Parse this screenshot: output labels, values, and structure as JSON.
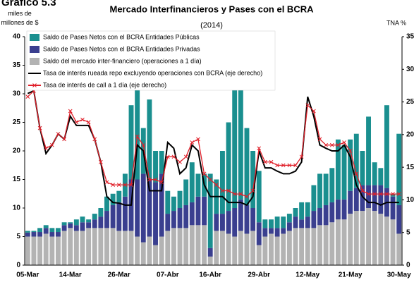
{
  "chart_data": {
    "type": "bar",
    "label": "Gráfico 5.3",
    "title": "Mercado Interfinancieros y Pases con el BCRA",
    "subtitle": "(2014)",
    "y_label": "miles de millones de $",
    "y2_label": "TNA %",
    "categories": [
      "05-Mar",
      null,
      null,
      null,
      null,
      null,
      null,
      "14-Mar",
      null,
      null,
      null,
      null,
      null,
      null,
      null,
      "26-Mar",
      null,
      null,
      null,
      null,
      null,
      null,
      null,
      "07-Abr",
      null,
      null,
      null,
      null,
      null,
      null,
      "16-Abr",
      null,
      null,
      null,
      null,
      null,
      null,
      null,
      "29-Abr",
      null,
      null,
      null,
      null,
      null,
      null,
      null,
      "12-May",
      null,
      null,
      null,
      null,
      null,
      null,
      "21-May",
      null,
      null,
      null,
      null,
      null,
      null,
      null,
      "30-May"
    ],
    "ylim": [
      0,
      40
    ],
    "yticks": [
      0,
      5,
      10,
      15,
      20,
      25,
      30,
      35,
      40
    ],
    "y2lim": [
      0,
      35
    ],
    "y2ticks": [
      0,
      5,
      10,
      15,
      20,
      25,
      30,
      35
    ],
    "series": [
      {
        "name": "Saldo del mercado inter-financiero (operaciones a 1 día)",
        "color": "#b3b3b3",
        "kind": "bar",
        "values": [
          5,
          5,
          5,
          5.5,
          5,
          5,
          6,
          6.5,
          6,
          6,
          6.5,
          6.5,
          6.5,
          6.5,
          6.5,
          6,
          6,
          6,
          5,
          4,
          5,
          3.5,
          5,
          6,
          6.5,
          6.5,
          6.5,
          7,
          7,
          7,
          1.5,
          6,
          6,
          5.5,
          5,
          6,
          5.5,
          6,
          3.5,
          5,
          5.5,
          5,
          5.5,
          6,
          6.5,
          6.5,
          6.5,
          6.5,
          7,
          7,
          7.5,
          8,
          8,
          9,
          9.5,
          9.5,
          10,
          9.5,
          9,
          8.5,
          8,
          5.5
        ]
      },
      {
        "name": "Saldo de Pases Netos con el BCRA Entidades Privadas",
        "color": "#3a3f8f",
        "kind": "bar",
        "values": [
          0.7,
          0.8,
          0.8,
          1,
          0.8,
          0.8,
          1,
          0.8,
          1,
          1.5,
          1,
          1.5,
          2,
          3,
          4,
          5,
          6,
          9,
          10,
          12,
          10,
          11,
          11,
          3,
          3,
          3.5,
          4,
          4,
          5,
          5,
          1.5,
          3,
          3,
          4,
          5,
          5.5,
          5,
          4,
          4,
          1.5,
          1,
          1.5,
          1,
          1.5,
          2,
          1.5,
          2,
          3,
          3,
          3.5,
          3.5,
          3.5,
          3.5,
          4,
          4,
          4.5,
          4,
          4.5,
          5,
          5,
          4,
          5
        ]
      },
      {
        "name": "Saldo de Pases Netos con el BCRA Entidades Públicas",
        "color": "#1a8f8f",
        "kind": "bar",
        "values": [
          0.3,
          0.2,
          0.7,
          0.5,
          0.7,
          0.7,
          0.5,
          0.2,
          1,
          1,
          0.5,
          1,
          1.5,
          2.5,
          2,
          2,
          4,
          13,
          16,
          8,
          14,
          5.5,
          4,
          4,
          2.5,
          3,
          4.5,
          7,
          4,
          4,
          13,
          6,
          11,
          15.5,
          23,
          25.5,
          13.5,
          10,
          9,
          1.5,
          1.5,
          2,
          2,
          1.5,
          1.5,
          3,
          2.5,
          4.5,
          6,
          5.5,
          6,
          10.5,
          9.5,
          9,
          9.5,
          6,
          12,
          4,
          3,
          14.5,
          0.5,
          12.5
        ]
      },
      {
        "name": "Tasa de interés rueada repo excluyendo operaciones con BCRA (eje derecho)",
        "color": "#000000",
        "kind": "line",
        "axis": "y2",
        "values": [
          26.3,
          26.7,
          21,
          17.1,
          18.4,
          20.1,
          19.3,
          22.8,
          21.4,
          21.4,
          21.4,
          19.3,
          15.8,
          10.5,
          9.6,
          9.5,
          9.2,
          9.2,
          18.4,
          17.5,
          11.4,
          11.4,
          11.4,
          18.8,
          17.9,
          14,
          14.9,
          18.4,
          17.5,
          12.3,
          10.5,
          10.5,
          10.5,
          9.6,
          9.6,
          9.6,
          9.2,
          10.5,
          17.5,
          14.9,
          14.9,
          14.4,
          14,
          14,
          14.4,
          15.8,
          25.8,
          22.8,
          18.4,
          17.9,
          17.5,
          17.5,
          18.4,
          16.6,
          12.3,
          10.5,
          9.6,
          9.6,
          9.2,
          9.6,
          9.6,
          9.6
        ]
      },
      {
        "name": "Tasa de interés de call a 1 día (eje derecho)",
        "color": "#e0202a",
        "kind": "line",
        "marker": "x",
        "axis": "y2",
        "values": [
          25.8,
          26.7,
          21,
          17.9,
          18.4,
          20.1,
          19.3,
          23.6,
          21.9,
          22.3,
          21.9,
          19.3,
          15.8,
          12.7,
          12.3,
          12.3,
          12.3,
          12.3,
          19.7,
          18.4,
          13.1,
          13.1,
          12.7,
          16.6,
          16.6,
          15.8,
          16.6,
          18.8,
          19.3,
          14,
          13.1,
          12.3,
          11.4,
          11.4,
          10.9,
          10.9,
          10.5,
          11.4,
          17.9,
          15.8,
          15.8,
          15.3,
          15.3,
          15.3,
          15.3,
          16.6,
          24.5,
          23.6,
          19.3,
          18.4,
          18.4,
          18.4,
          18.8,
          17.5,
          14,
          11.4,
          10.9,
          10.9,
          10.9,
          10.9,
          10.9,
          10.9
        ]
      }
    ],
    "legend_order": [
      2,
      1,
      0,
      3,
      4
    ]
  }
}
